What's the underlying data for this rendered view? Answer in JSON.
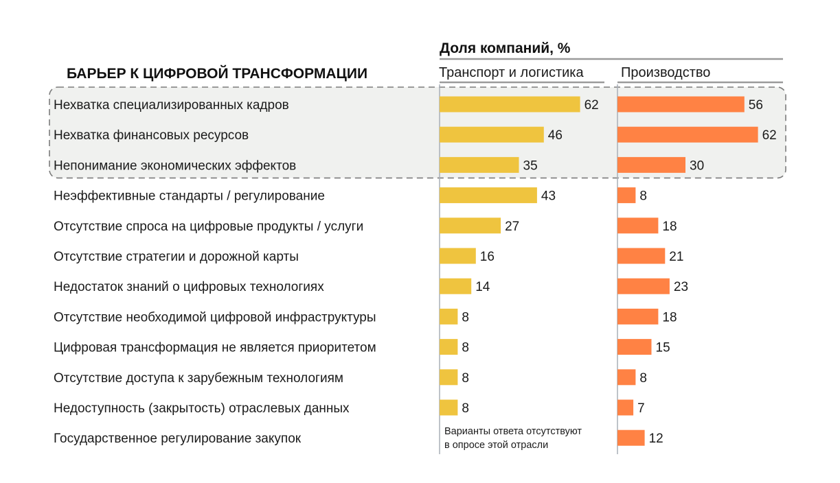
{
  "chart_data": {
    "type": "bar",
    "orientation": "horizontal",
    "header": "Доля компаний, %",
    "category_header": "БАРЬЕР К ЦИФРОВОЙ ТРАНСФОРМАЦИИ",
    "categories": [
      "Нехватка специализированных кадров",
      "Нехватка финансовых ресурсов",
      "Непонимание экономических эффектов",
      "Неэффективные стандарты / регулирование",
      "Отсутствие спроса на цифровые продукты / услуги",
      "Отсутствие стратегии и дорожной карты",
      "Недостаток знаний о цифровых технологиях",
      "Отсутствие необходимой цифровой инфраструктуры",
      "Цифровая трансформация не является приоритетом",
      "Отсутствие доступа к зарубежным технологиям",
      "Недоступность (закрытость) отраслевых данных",
      "Государственное регулирование закупок"
    ],
    "series": [
      {
        "name": "Транспорт и логистика",
        "color": "#efc43f",
        "values": [
          62,
          46,
          35,
          43,
          27,
          16,
          14,
          8,
          8,
          8,
          8,
          null
        ]
      },
      {
        "name": "Производство",
        "color": "#ff8244",
        "values": [
          56,
          62,
          30,
          8,
          18,
          21,
          23,
          18,
          15,
          8,
          7,
          12
        ]
      }
    ],
    "highlighted_categories": [
      0,
      1,
      2
    ],
    "missing_note": "Варианты ответа отсутствуют в опросе этой отрасли",
    "missing_note_lines": [
      "Варианты ответа отсутствуют",
      "в опросе этой отрасли"
    ],
    "xlim": [
      0,
      70
    ],
    "grid": false,
    "legend": "column-headers"
  }
}
